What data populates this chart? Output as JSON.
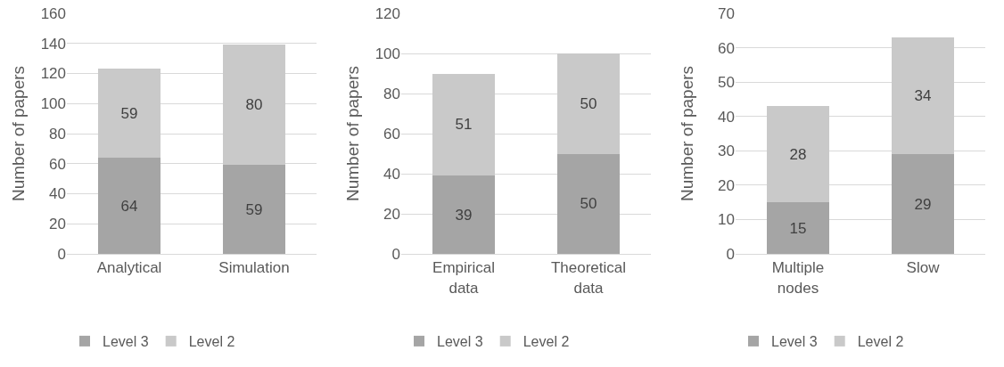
{
  "chart_data": [
    {
      "type": "bar",
      "stacked": true,
      "ylabel": "Number of papers",
      "categories": [
        "Analytical",
        "Simulation"
      ],
      "series": [
        {
          "name": "Level 3",
          "color": "#a5a5a5",
          "values": [
            64,
            59
          ]
        },
        {
          "name": "Level 2",
          "color": "#c9c9c9",
          "values": [
            59,
            80
          ]
        }
      ],
      "ylim": [
        0,
        160
      ],
      "yticks": [
        0,
        20,
        40,
        60,
        80,
        100,
        120,
        140,
        160
      ],
      "grid": "y",
      "legend": "bottom left",
      "data_labels": true
    },
    {
      "type": "bar",
      "stacked": true,
      "ylabel": "Number of papers",
      "categories": [
        "Empirical data",
        "Theoretical data"
      ],
      "series": [
        {
          "name": "Level 3",
          "color": "#a5a5a5",
          "values": [
            39,
            50
          ]
        },
        {
          "name": "Level 2",
          "color": "#c9c9c9",
          "values": [
            51,
            50
          ]
        }
      ],
      "ylim": [
        0,
        120
      ],
      "yticks": [
        0,
        20,
        40,
        60,
        80,
        100,
        120
      ],
      "grid": "y",
      "legend": "bottom left",
      "data_labels": true
    },
    {
      "type": "bar",
      "stacked": true,
      "ylabel": "Number of papers",
      "categories": [
        "Multiple nodes",
        "Slow"
      ],
      "series": [
        {
          "name": "Level 3",
          "color": "#a5a5a5",
          "values": [
            15,
            29
          ]
        },
        {
          "name": "Level 2",
          "color": "#c9c9c9",
          "values": [
            28,
            34
          ]
        }
      ],
      "ylim": [
        0,
        70
      ],
      "yticks": [
        0,
        10,
        20,
        30,
        40,
        50,
        60,
        70
      ],
      "grid": "y",
      "legend": "bottom left",
      "data_labels": true
    }
  ]
}
